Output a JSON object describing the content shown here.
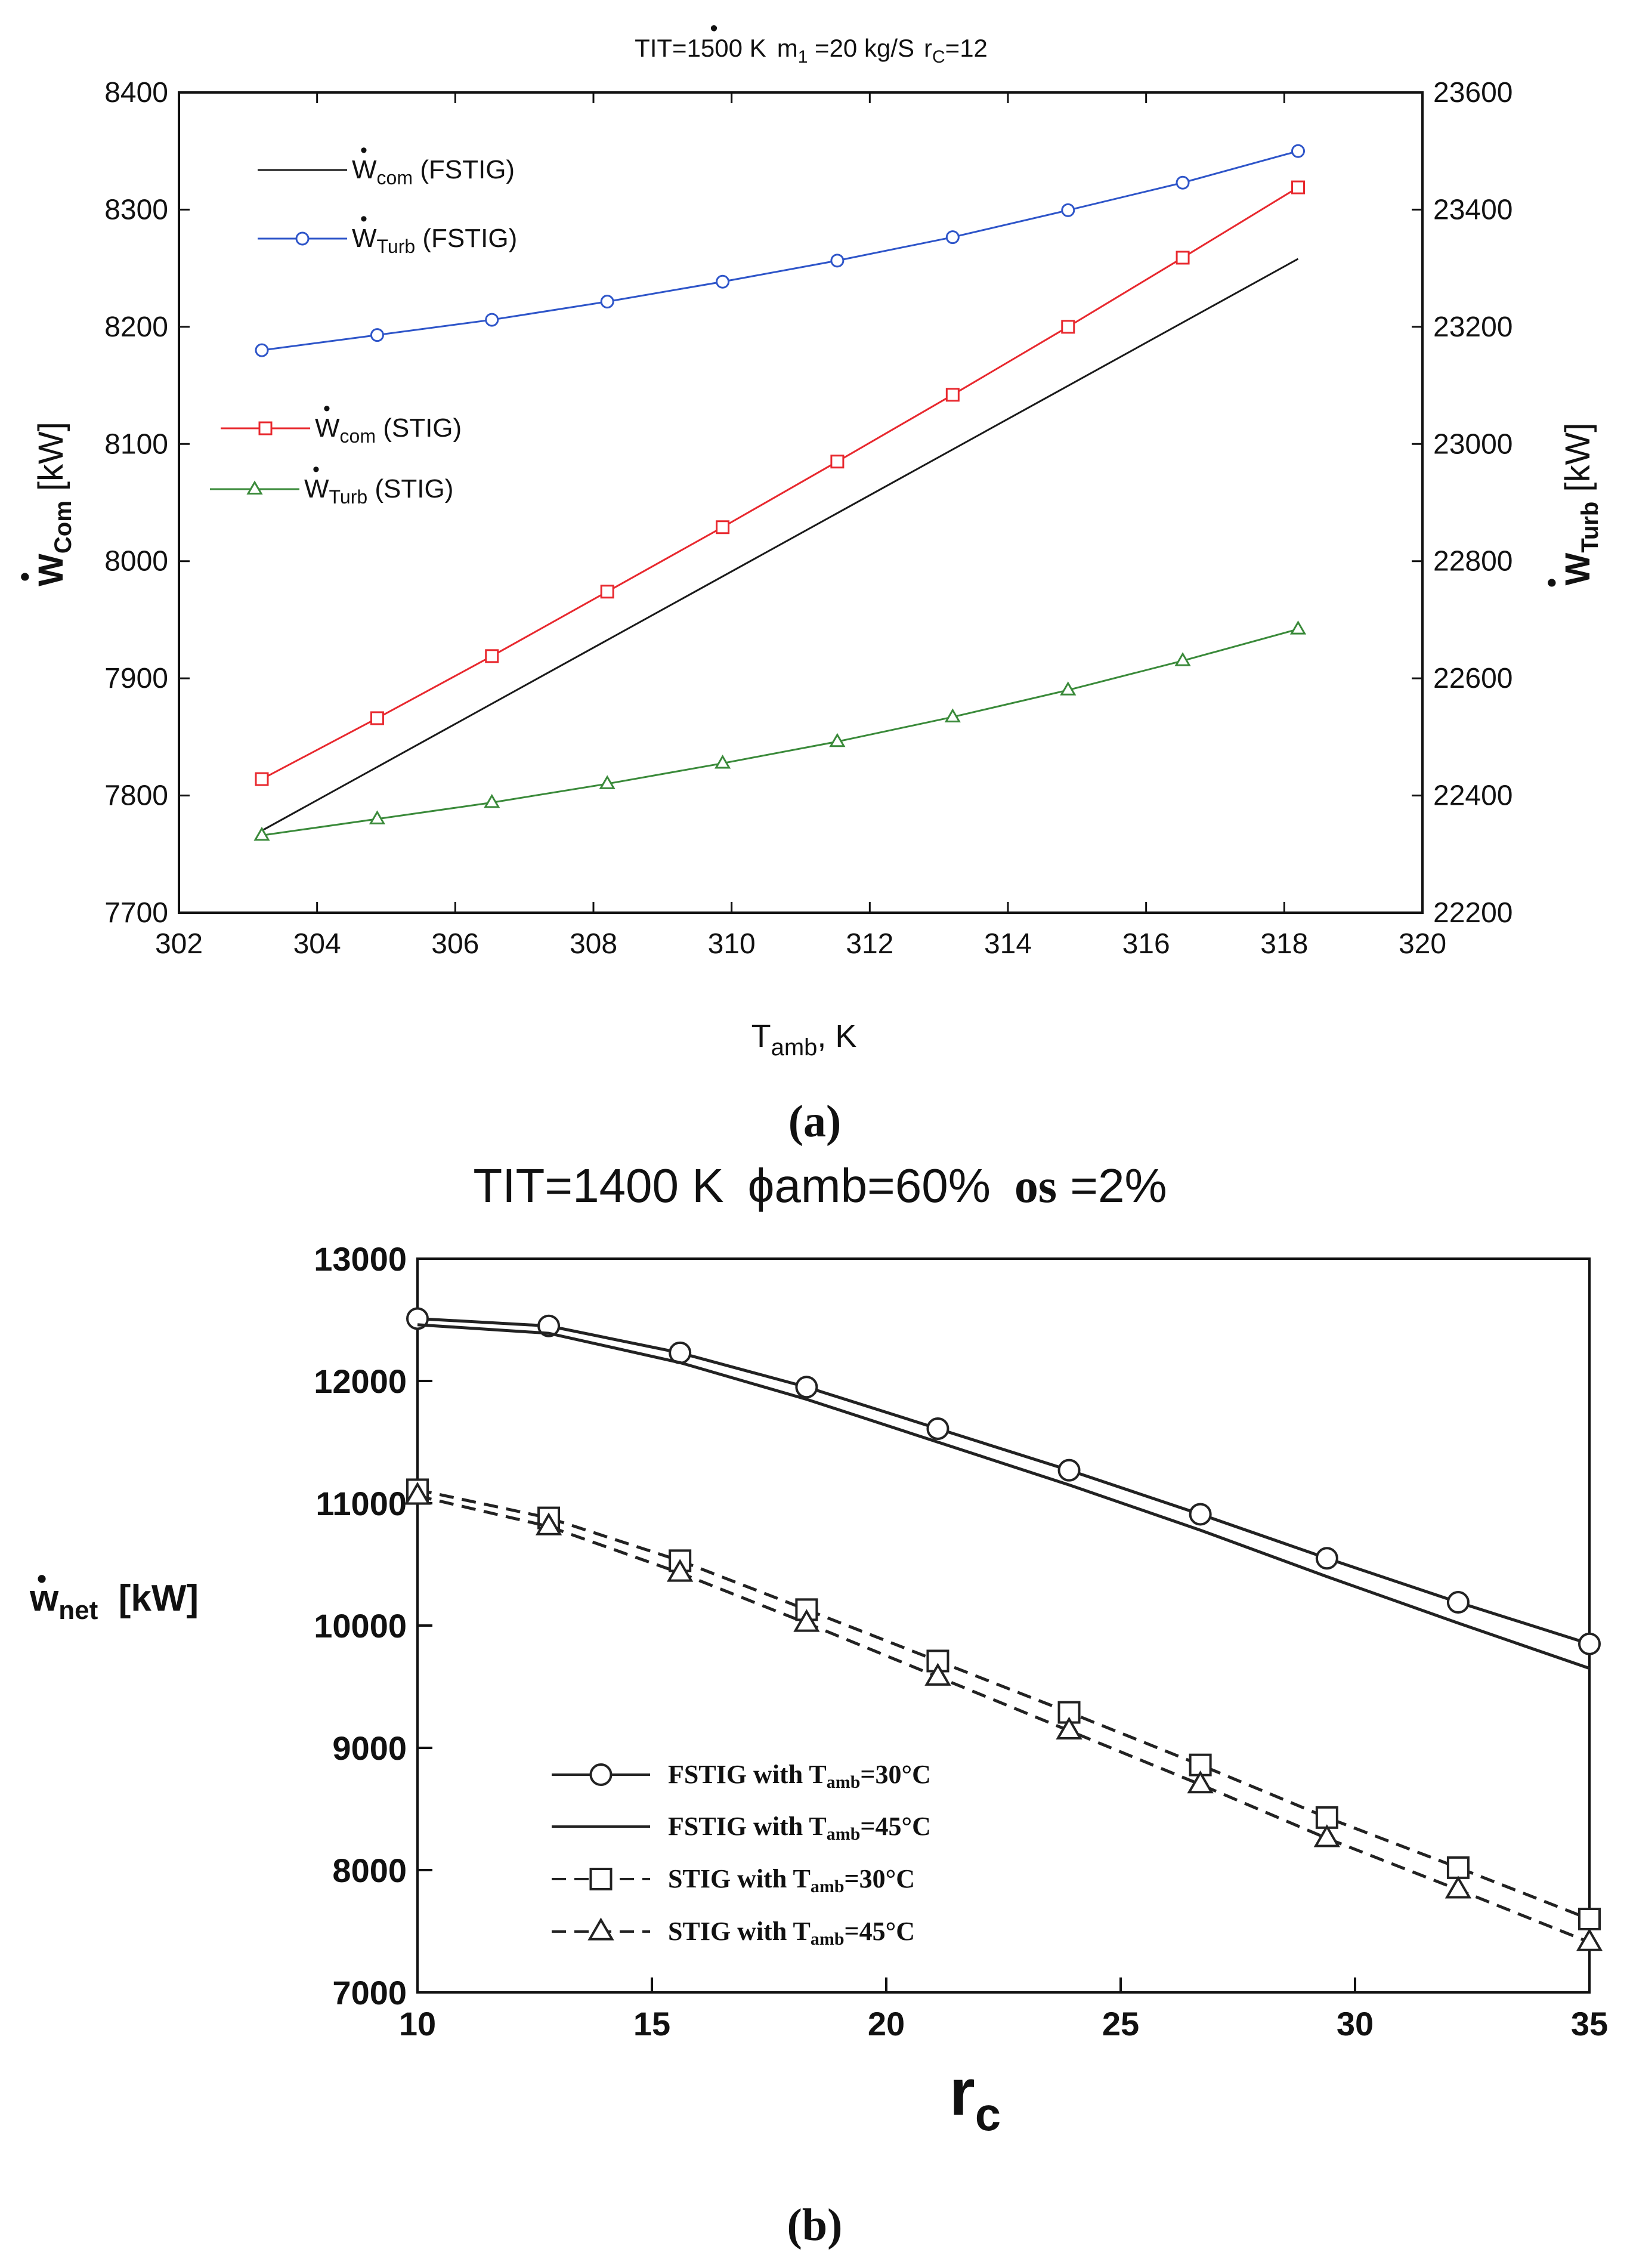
{
  "chart_data": [
    {
      "type": "line",
      "panel_label": "(a)",
      "title": "TIT=1500 K  ṁ₁ =20 kg/S  r_C=12",
      "title_parts": {
        "tit": "TIT=1500 K",
        "m_symbol": "m",
        "m_sub": "1",
        "m_val": " =20 kg/S",
        "rc_symbol": "r",
        "rc_sub": "C",
        "rc_val": "=12"
      },
      "xlabel": "T_amb, K",
      "xlabel_parts": {
        "sym": "T",
        "sub": "amb",
        "unit": ", K"
      },
      "ylabel_left": "Ẇ_Com [kW]",
      "ylabel_left_parts": {
        "sym": "W",
        "sub": "Com",
        "unit": " [kW]"
      },
      "ylabel_right": "Ẇ_Turb [kW]",
      "ylabel_right_parts": {
        "sym": "W",
        "sub": "Turb",
        "unit": " [kW]"
      },
      "xlim": [
        302,
        320
      ],
      "ylim_left": [
        7700,
        8400
      ],
      "ylim_right": [
        22200,
        23600
      ],
      "xticks": [
        302,
        304,
        306,
        308,
        310,
        312,
        314,
        316,
        318,
        320
      ],
      "yticks_left": [
        7700,
        7800,
        7900,
        8000,
        8100,
        8200,
        8300,
        8400
      ],
      "yticks_right": [
        22200,
        22400,
        22600,
        22800,
        23000,
        23200,
        23400,
        23600
      ],
      "series": [
        {
          "name": "Ẇ_com (FSTIG)",
          "label_sym": "W",
          "label_sub": "com",
          "label_rest": " (FSTIG)",
          "axis": "left",
          "color": "#1a1a1a",
          "marker": "none",
          "x": [
            303.2,
            318.2
          ],
          "y": [
            7770,
            8258
          ]
        },
        {
          "name": "Ẇ_Turb (FSTIG)",
          "label_sym": "W",
          "label_sub": "Turb",
          "label_rest": " (FSTIG)",
          "axis": "right",
          "color": "#2e55c9",
          "marker": "circle",
          "x": [
            303.2,
            304.87,
            306.53,
            308.2,
            309.87,
            311.53,
            313.2,
            314.87,
            316.53,
            318.2
          ],
          "y": [
            23160,
            23186,
            23212,
            23243,
            23277,
            23313,
            23353,
            23399,
            23446,
            23500
          ]
        },
        {
          "name": "Ẇ_com (STIG)",
          "label_sym": "W",
          "label_sub": "com",
          "label_rest": " (STIG)",
          "axis": "left",
          "color": "#e8282e",
          "marker": "square",
          "x": [
            303.2,
            304.87,
            306.53,
            308.2,
            309.87,
            311.53,
            313.2,
            314.87,
            316.53,
            318.2
          ],
          "y": [
            7814,
            7866,
            7919,
            7974,
            8029,
            8085,
            8142,
            8200,
            8259,
            8319
          ]
        },
        {
          "name": "Ẇ_Turb (STIG)",
          "label_sym": "W",
          "label_sub": "Turb",
          "label_rest": " (STIG)",
          "axis": "right",
          "color": "#3a8a3a",
          "marker": "triangle",
          "x": [
            303.2,
            304.87,
            306.53,
            308.2,
            309.87,
            311.53,
            313.2,
            314.87,
            316.53,
            318.2
          ],
          "y": [
            22332,
            22360,
            22388,
            22420,
            22455,
            22492,
            22534,
            22580,
            22630,
            22684
          ]
        }
      ]
    },
    {
      "type": "line",
      "panel_label": "(b)",
      "title": "TIT=1400 K   ϕamb=60%   os =2%",
      "title_parts": {
        "tit": "TIT=1400 K",
        "phi": "ϕamb=60%",
        "os_sym": "os",
        "os_val": " =2%"
      },
      "xlabel": "r_c",
      "xlabel_parts": {
        "sym": "r",
        "sub": "c"
      },
      "ylabel": "ẇ_net [kW]",
      "ylabel_parts": {
        "sym": "w",
        "sub": "net",
        "unit": "  [kW]"
      },
      "xlim": [
        10,
        35
      ],
      "ylim": [
        7000,
        13000
      ],
      "xticks": [
        10,
        15,
        20,
        25,
        30,
        35
      ],
      "yticks": [
        7000,
        8000,
        9000,
        10000,
        11000,
        12000,
        13000
      ],
      "series": [
        {
          "name": "FSTIG with Tamb=30°C",
          "label_prefix": "FSTIG with T",
          "label_sub": "amb",
          "label_suffix": "=30°C",
          "style": "solid",
          "marker": "circle",
          "x": [
            10,
            12.8,
            15.6,
            18.3,
            21.1,
            23.9,
            26.7,
            29.4,
            32.2,
            35
          ],
          "y": [
            12510,
            12450,
            12230,
            11950,
            11610,
            11270,
            10910,
            10550,
            10190,
            9850
          ]
        },
        {
          "name": "FSTIG with Tamb=45°C",
          "label_prefix": "FSTIG with T",
          "label_sub": "amb",
          "label_suffix": "=45°C",
          "style": "solid",
          "marker": "none",
          "x": [
            10,
            12.8,
            15.6,
            18.3,
            21.1,
            23.9,
            26.7,
            29.4,
            32.2,
            35
          ],
          "y": [
            12460,
            12390,
            12150,
            11850,
            11500,
            11150,
            10780,
            10400,
            10020,
            9650
          ]
        },
        {
          "name": "STIG with Tamb=30°C",
          "label_prefix": "STIG with T",
          "label_sub": "amb",
          "label_suffix": "=30°C",
          "style": "dashed",
          "marker": "square",
          "x": [
            10,
            12.8,
            15.6,
            18.3,
            21.1,
            23.9,
            26.7,
            29.4,
            32.2,
            35
          ],
          "y": [
            11110,
            10880,
            10530,
            10130,
            9710,
            9290,
            8860,
            8430,
            8020,
            7600
          ]
        },
        {
          "name": "STIG with Tamb=45°C",
          "label_prefix": "STIG with T",
          "label_sub": "amb",
          "label_suffix": "=45°C",
          "style": "dashed",
          "marker": "triangle",
          "x": [
            10,
            12.8,
            15.6,
            18.3,
            21.1,
            23.9,
            26.7,
            29.4,
            32.2,
            35
          ],
          "y": [
            11060,
            10810,
            10430,
            10020,
            9580,
            9140,
            8700,
            8260,
            7840,
            7410
          ]
        }
      ]
    }
  ]
}
